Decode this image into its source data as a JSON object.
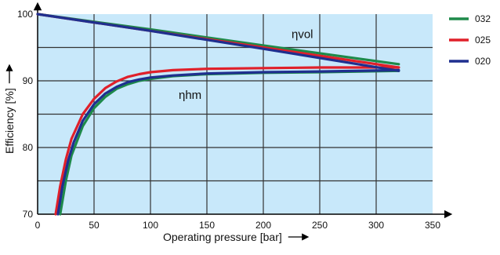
{
  "chart_data": {
    "type": "line",
    "xlabel": "Operating pressure [bar]",
    "ylabel": "Efficiency [%]",
    "xlim": [
      0,
      350
    ],
    "ylim": [
      70,
      100
    ],
    "x_ticks": [
      "0",
      "50",
      "100",
      "150",
      "200",
      "250",
      "300",
      "350"
    ],
    "y_ticks": [
      "70",
      "80",
      "90",
      "100"
    ],
    "grid": true,
    "legend_position": "right",
    "plot_background": "#c8e8fa",
    "annotations": [
      {
        "text": "ηvol",
        "x": 225,
        "y": 96.4
      },
      {
        "text": "ηhm",
        "x": 125,
        "y": 87.3
      }
    ],
    "series": [
      {
        "name": "032",
        "color": "#1e8a4a",
        "curves": {
          "eta_vol": {
            "x": [
              0,
              100,
              200,
              320
            ],
            "y": [
              100,
              97.7,
              95.3,
              92.5
            ]
          },
          "eta_hm": {
            "x": [
              20,
              25,
              30,
              40,
              50,
              60,
              70,
              80,
              90,
              100,
              120,
              150,
              200,
              250,
              320
            ],
            "y": [
              70,
              75,
              78.8,
              83.2,
              85.9,
              87.6,
              88.8,
              89.5,
              90.0,
              90.3,
              90.7,
              91.0,
              91.2,
              91.3,
              91.5
            ]
          }
        }
      },
      {
        "name": "025",
        "color": "#e0202a",
        "curves": {
          "eta_vol": {
            "x": [
              0,
              100,
              200,
              320
            ],
            "y": [
              100,
              97.5,
              95.0,
              92.0
            ]
          },
          "eta_hm": {
            "x": [
              16,
              20,
              25,
              30,
              40,
              50,
              60,
              70,
              80,
              90,
              100,
              120,
              150,
              200,
              250,
              320
            ],
            "y": [
              70,
              74.2,
              78.2,
              81.3,
              85.0,
              87.3,
              88.9,
              89.9,
              90.6,
              91.0,
              91.3,
              91.6,
              91.8,
              91.9,
              92.0,
              92.0
            ]
          }
        }
      },
      {
        "name": "020",
        "color": "#1f2f8f",
        "curves": {
          "eta_vol": {
            "x": [
              0,
              100,
              200,
              320
            ],
            "y": [
              100,
              97.5,
              94.8,
              91.5
            ]
          },
          "eta_hm": {
            "x": [
              18,
              22,
              27,
              32,
              40,
              50,
              60,
              70,
              80,
              90,
              100,
              120,
              150,
              200,
              250,
              320
            ],
            "y": [
              70,
              74.2,
              78.0,
              80.8,
              84.0,
              86.5,
              88.1,
              89.1,
              89.8,
              90.2,
              90.5,
              90.8,
              91.1,
              91.3,
              91.4,
              91.6
            ]
          }
        }
      }
    ]
  }
}
